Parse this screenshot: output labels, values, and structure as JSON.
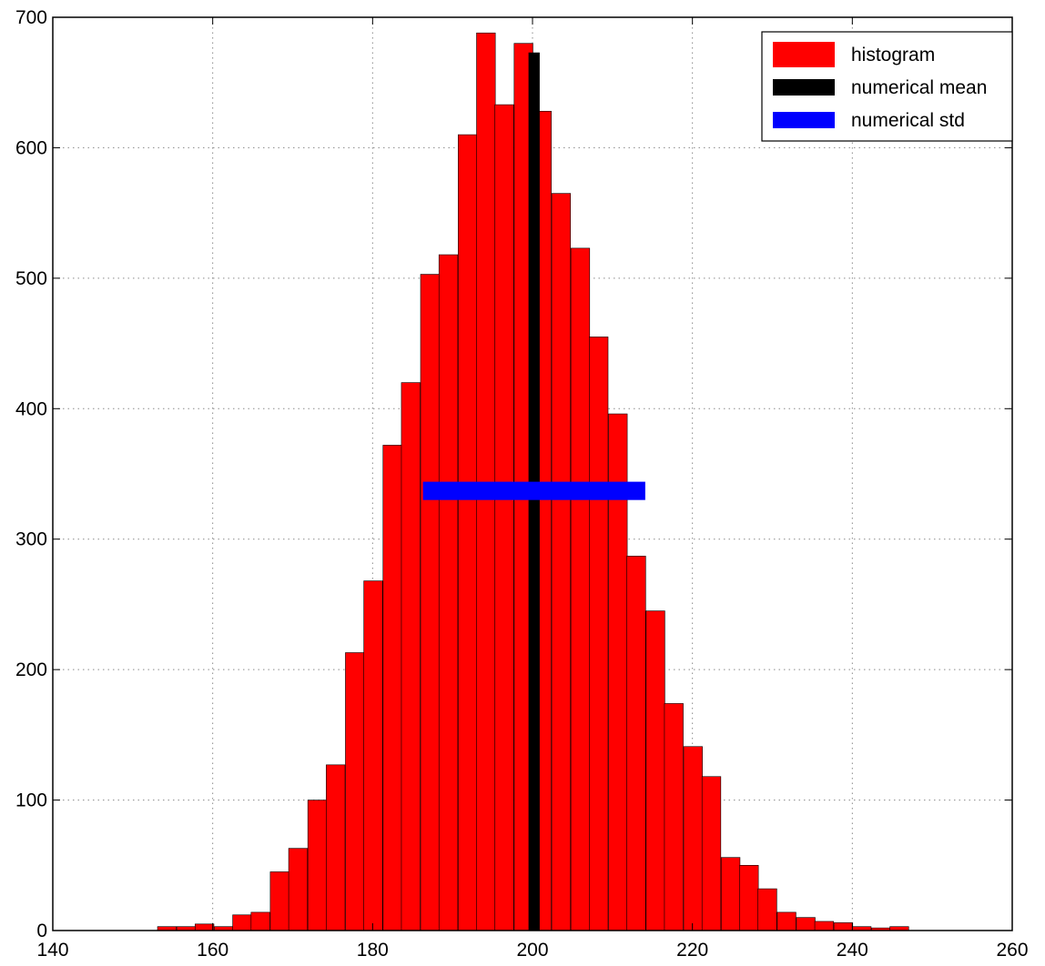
{
  "chart_data": {
    "type": "bar",
    "bin_width": 2.35,
    "bins": [
      {
        "x0": 153.1,
        "value": 3
      },
      {
        "x0": 155.5,
        "value": 3
      },
      {
        "x0": 157.8,
        "value": 5
      },
      {
        "x0": 160.2,
        "value": 3
      },
      {
        "x0": 162.5,
        "value": 12
      },
      {
        "x0": 164.8,
        "value": 14
      },
      {
        "x0": 167.2,
        "value": 45
      },
      {
        "x0": 169.5,
        "value": 63
      },
      {
        "x0": 171.9,
        "value": 100
      },
      {
        "x0": 174.2,
        "value": 127
      },
      {
        "x0": 176.6,
        "value": 213
      },
      {
        "x0": 178.9,
        "value": 268
      },
      {
        "x0": 181.3,
        "value": 372
      },
      {
        "x0": 183.6,
        "value": 420
      },
      {
        "x0": 186.0,
        "value": 503
      },
      {
        "x0": 188.3,
        "value": 518
      },
      {
        "x0": 190.7,
        "value": 610
      },
      {
        "x0": 193.0,
        "value": 688
      },
      {
        "x0": 195.3,
        "value": 633
      },
      {
        "x0": 197.7,
        "value": 680
      },
      {
        "x0": 200.0,
        "value": 628
      },
      {
        "x0": 202.4,
        "value": 565
      },
      {
        "x0": 204.8,
        "value": 523
      },
      {
        "x0": 207.1,
        "value": 455
      },
      {
        "x0": 209.5,
        "value": 396
      },
      {
        "x0": 211.8,
        "value": 287
      },
      {
        "x0": 214.2,
        "value": 245
      },
      {
        "x0": 216.5,
        "value": 174
      },
      {
        "x0": 218.9,
        "value": 141
      },
      {
        "x0": 221.2,
        "value": 118
      },
      {
        "x0": 223.6,
        "value": 56
      },
      {
        "x0": 225.9,
        "value": 50
      },
      {
        "x0": 228.2,
        "value": 32
      },
      {
        "x0": 230.6,
        "value": 14
      },
      {
        "x0": 233.0,
        "value": 10
      },
      {
        "x0": 235.3,
        "value": 7
      },
      {
        "x0": 237.7,
        "value": 6
      },
      {
        "x0": 240.0,
        "value": 3
      },
      {
        "x0": 242.4,
        "value": 2
      },
      {
        "x0": 244.7,
        "value": 3
      }
    ],
    "mean": {
      "x": 200.2,
      "width": 1.4,
      "value": 673
    },
    "std": {
      "x_from": 186.3,
      "x_to": 214.1,
      "y": 337,
      "thickness": 14
    },
    "xlim": [
      140,
      260
    ],
    "ylim": [
      0,
      700
    ],
    "xticks": [
      140,
      160,
      180,
      200,
      220,
      240,
      260
    ],
    "yticks": [
      0,
      100,
      200,
      300,
      400,
      500,
      600,
      700
    ],
    "grid": true,
    "legend_position": "top-right",
    "legend": [
      {
        "label": "histogram",
        "color": "#ff0000"
      },
      {
        "label": "numerical mean",
        "color": "#000000"
      },
      {
        "label": "numerical std",
        "color": "#0000ff"
      }
    ],
    "colors": {
      "histogram": "#ff0000",
      "mean": "#000000",
      "std": "#0000ff",
      "grid": "#8a8a8a"
    }
  }
}
